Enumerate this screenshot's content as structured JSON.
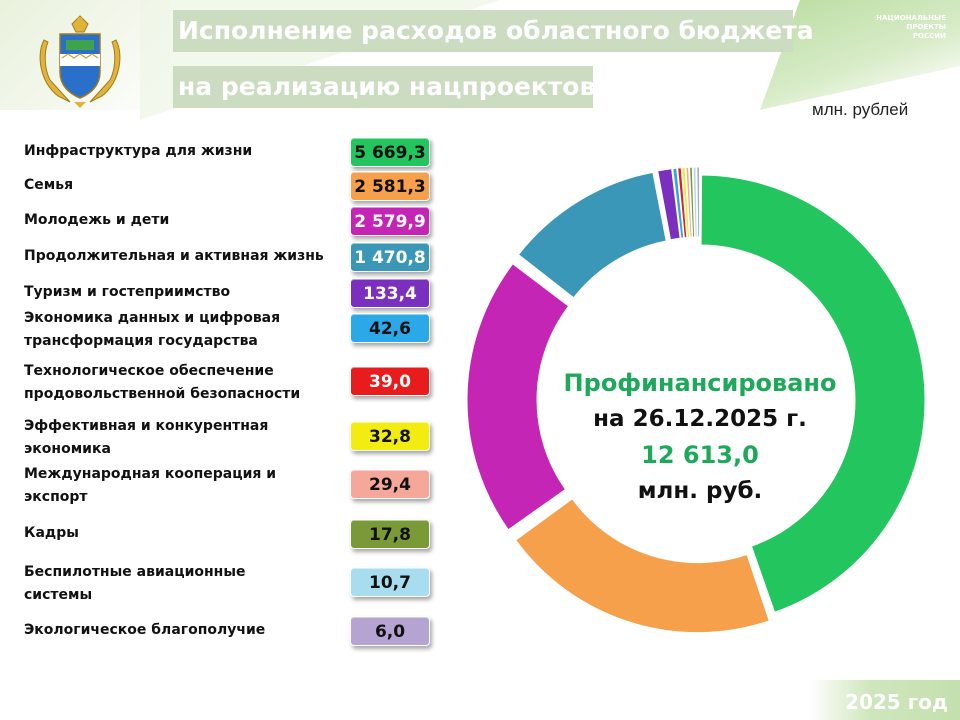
{
  "header": {
    "title_line1": "Исполнение расходов областного бюджета",
    "title_line2": "на реализацию нацпроектов",
    "logo_lines": [
      "НАЦИОНАЛЬНЫЕ",
      "ПРОЕКТЫ",
      "РОССИИ"
    ],
    "unit": "млн. рублей"
  },
  "footer": {
    "year": "2025 год"
  },
  "center": {
    "line1": "Профинансировано",
    "line2": "на 26.12.2025 г.",
    "line3": "12 613,0",
    "line4": "млн. руб."
  },
  "chart_data": {
    "type": "pie",
    "donut": true,
    "title": "",
    "unit": "млн. рублей",
    "total": 12613.0,
    "categories": [
      "Инфраструктура для жизни",
      "Семья",
      "Молодежь и дети",
      "Продолжительная и активная жизнь",
      "Туризм и гостеприимство",
      "Экономика данных и цифровая трансформация государства",
      "Технологическое обеспечение продовольственной безопасности",
      "Эффективная и конкурентная экономика",
      "Международная кооперация и экспорт",
      "Кадры",
      "Беспилотные авиационные системы",
      "Экологическое благополучие"
    ],
    "label_lines": [
      [
        "Инфраструктура для жизни"
      ],
      [
        "Семья"
      ],
      [
        "Молодежь и дети"
      ],
      [
        "Продолжительная и активная жизнь"
      ],
      [
        "Туризм и гостеприимство"
      ],
      [
        "Экономика данных и цифровая",
        "трансформация государства"
      ],
      [
        "Технологическое обеспечение",
        "продовольственной безопасности"
      ],
      [
        "Эффективная и конкурентная",
        "экономика"
      ],
      [
        "Международная кооперация и",
        "экспорт"
      ],
      [
        "Кадры"
      ],
      [
        "Беспилотные авиационные",
        "системы"
      ],
      [
        "Экологическое благополучие"
      ]
    ],
    "values": [
      5669.3,
      2581.3,
      2579.9,
      1470.8,
      133.4,
      42.6,
      39.0,
      32.8,
      29.4,
      17.8,
      10.7,
      6.0
    ],
    "value_labels": [
      "5 669,3",
      "2 581,3",
      "2 579,9",
      "1 470,8",
      "133,4",
      "42,6",
      "39,0",
      "32,8",
      "29,4",
      "17,8",
      "10,7",
      "6,0"
    ],
    "colors": [
      "#22c55e",
      "#f7a04b",
      "#c425b4",
      "#3a97b8",
      "#7b2fbe",
      "#2aa8e8",
      "#e81c1c",
      "#f2ec10",
      "#f5a79a",
      "#7a9a38",
      "#a8dcef",
      "#b5a3d1"
    ],
    "value_text_colors": [
      "#111111",
      "#111111",
      "#ffffff",
      "#ffffff",
      "#ffffff",
      "#111111",
      "#ffffff",
      "#111111",
      "#111111",
      "#111111",
      "#111111",
      "#111111"
    ],
    "legend_position": "left"
  }
}
